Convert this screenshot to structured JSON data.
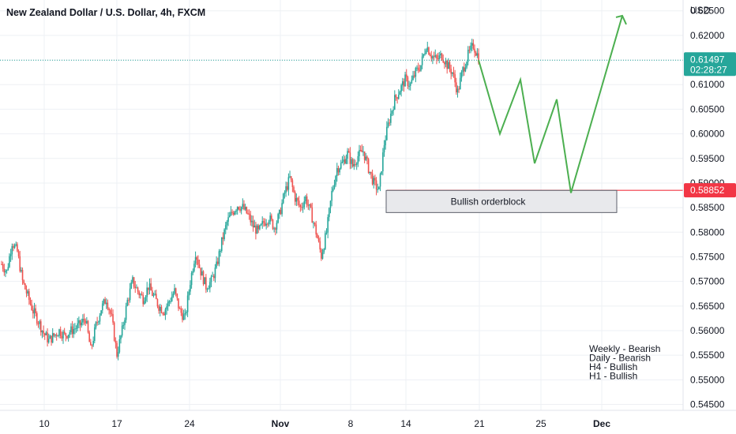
{
  "header": {
    "title": "New Zealand Dollar / U.S. Dollar, 4h, FXCM"
  },
  "price_axis": {
    "currency": "USD"
  },
  "last_price": {
    "price": "0.61497",
    "countdown": "02:28:27",
    "color": "#26a69a"
  },
  "level_price": {
    "price": "0.58852",
    "color": "#f23645"
  },
  "orderblock": {
    "label": "Bullish orderblock"
  },
  "bias_notes": [
    "Weekly - Bearish",
    "Daily - Bearish",
    "H4 - Bullish",
    "H1 - Bullish"
  ],
  "colors": {
    "up": "#26a69a",
    "down": "#ef5350",
    "projection": "#4caf50",
    "level": "#f23645"
  },
  "chart_data": {
    "type": "candlestick",
    "title": "New Zealand Dollar / U.S. Dollar, 4h, FXCM",
    "ylabel": "USD",
    "ylim": [
      0.5438,
      0.6272
    ],
    "y_ticks": [
      "0.54500",
      "0.55000",
      "0.55500",
      "0.56000",
      "0.56500",
      "0.57000",
      "0.57500",
      "0.58000",
      "0.58500",
      "0.59000",
      "0.59500",
      "0.60000",
      "0.60500",
      "0.61000",
      "0.61500",
      "0.62000",
      "0.62500"
    ],
    "x_ticks": [
      "10",
      "17",
      "24",
      "Nov",
      "8",
      "14",
      "21",
      "25",
      "Dec"
    ],
    "close_path": [
      [
        0,
        0.5735
      ],
      [
        4,
        0.572
      ],
      [
        8,
        0.578
      ],
      [
        12,
        0.576
      ],
      [
        16,
        0.57
      ],
      [
        20,
        0.567
      ],
      [
        24,
        0.564
      ],
      [
        28,
        0.562
      ],
      [
        32,
        0.5595
      ],
      [
        36,
        0.558
      ],
      [
        40,
        0.559
      ],
      [
        44,
        0.56
      ],
      [
        48,
        0.559
      ],
      [
        52,
        0.5598
      ],
      [
        56,
        0.5605
      ],
      [
        60,
        0.5612
      ],
      [
        64,
        0.5625
      ],
      [
        68,
        0.556
      ],
      [
        72,
        0.561
      ],
      [
        76,
        0.5645
      ],
      [
        80,
        0.5665
      ],
      [
        84,
        0.5625
      ],
      [
        88,
        0.5552
      ],
      [
        92,
        0.56
      ],
      [
        96,
        0.566
      ],
      [
        100,
        0.57
      ],
      [
        104,
        0.568
      ],
      [
        108,
        0.5665
      ],
      [
        112,
        0.569
      ],
      [
        116,
        0.567
      ],
      [
        120,
        0.565
      ],
      [
        124,
        0.564
      ],
      [
        128,
        0.566
      ],
      [
        132,
        0.568
      ],
      [
        136,
        0.564
      ],
      [
        140,
        0.5625
      ],
      [
        144,
        0.57
      ],
      [
        148,
        0.576
      ],
      [
        152,
        0.572
      ],
      [
        156,
        0.569
      ],
      [
        160,
        0.57
      ],
      [
        164,
        0.573
      ],
      [
        168,
        0.578
      ],
      [
        172,
        0.582
      ],
      [
        176,
        0.584
      ],
      [
        180,
        0.5855
      ],
      [
        184,
        0.585
      ],
      [
        188,
        0.5835
      ],
      [
        192,
        0.5812
      ],
      [
        196,
        0.58
      ],
      [
        200,
        0.582
      ],
      [
        204,
        0.583
      ],
      [
        208,
        0.581
      ],
      [
        212,
        0.5835
      ],
      [
        216,
        0.588
      ],
      [
        220,
        0.591
      ],
      [
        224,
        0.587
      ],
      [
        228,
        0.585
      ],
      [
        232,
        0.587
      ],
      [
        236,
        0.584
      ],
      [
        240,
        0.58
      ],
      [
        244,
        0.5752
      ],
      [
        248,
        0.58
      ],
      [
        252,
        0.588
      ],
      [
        256,
        0.593
      ],
      [
        260,
        0.594
      ],
      [
        264,
        0.596
      ],
      [
        268,
        0.5935
      ],
      [
        272,
        0.5955
      ],
      [
        276,
        0.5965
      ],
      [
        280,
        0.593
      ],
      [
        284,
        0.59
      ],
      [
        288,
        0.5885
      ],
      [
        292,
        0.598
      ],
      [
        296,
        0.603
      ],
      [
        300,
        0.607
      ],
      [
        304,
        0.609
      ],
      [
        308,
        0.611
      ],
      [
        312,
        0.61
      ],
      [
        316,
        0.6125
      ],
      [
        320,
        0.614
      ],
      [
        324,
        0.618
      ],
      [
        328,
        0.616
      ],
      [
        332,
        0.615
      ],
      [
        336,
        0.616
      ],
      [
        340,
        0.614
      ],
      [
        344,
        0.6125
      ],
      [
        348,
        0.6085
      ],
      [
        352,
        0.613
      ],
      [
        356,
        0.616
      ],
      [
        360,
        0.618
      ],
      [
        364,
        0.6155
      ]
    ],
    "projection_path": [
      [
        0.615
      ],
      [
        0.6
      ],
      [
        0.611
      ],
      [
        0.594
      ],
      [
        0.607
      ],
      [
        0.588
      ],
      [
        0.624
      ]
    ],
    "horizontal_levels": [
      {
        "price": 0.61497,
        "style": "dotted"
      },
      {
        "price": 0.58852,
        "style": "solid"
      }
    ],
    "orderblock_zone": {
      "top": 0.5885,
      "bottom": 0.584
    },
    "grid": true
  }
}
